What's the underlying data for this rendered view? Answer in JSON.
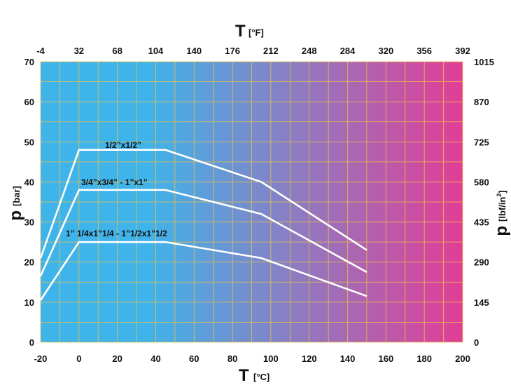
{
  "chart_data": {
    "type": "line",
    "x_axis_bottom": {
      "symbol": "T",
      "unit": "[°C]",
      "range": [
        -20,
        200
      ],
      "ticks": [
        -20,
        0,
        20,
        40,
        60,
        80,
        100,
        120,
        140,
        160,
        180,
        200
      ]
    },
    "x_axis_top": {
      "symbol": "T",
      "unit": "[°F]",
      "range": [
        -4,
        392
      ],
      "ticks": [
        -4,
        32,
        68,
        104,
        140,
        176,
        212,
        248,
        284,
        320,
        356,
        392
      ]
    },
    "y_axis_left": {
      "symbol": "p",
      "unit": "[bar]",
      "range": [
        0,
        70
      ],
      "ticks": [
        0,
        10,
        20,
        30,
        40,
        50,
        60,
        70
      ]
    },
    "y_axis_right": {
      "symbol": "p",
      "unit": "[lbf/in",
      "unit_sup": "2",
      "unit_end": "]",
      "ticks": [
        0,
        145,
        290,
        435,
        580,
        725,
        870,
        1015
      ]
    },
    "grid": true,
    "background_gradient": [
      "#3fb4ea",
      "#e33d95"
    ],
    "grid_color": "#e8c24a",
    "line_color": "#ffffff",
    "series": [
      {
        "name": "1/2”x1/2”",
        "x": [
          -20,
          0,
          45,
          95,
          150
        ],
        "y": [
          21,
          48,
          48,
          40,
          23
        ]
      },
      {
        "name": "3/4”x3/4” - 1”x1”",
        "x": [
          -20,
          0,
          45,
          95,
          150
        ],
        "y": [
          16.5,
          38,
          38,
          32,
          17.5
        ]
      },
      {
        "name": "1” 1/4x1”1/4 - 1”1/2x1”1/2",
        "x": [
          -20,
          0,
          45,
          95,
          150
        ],
        "y": [
          10.5,
          25,
          25,
          21,
          11.5
        ]
      }
    ]
  }
}
